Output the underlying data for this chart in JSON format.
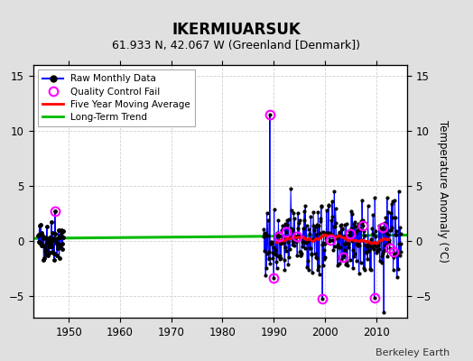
{
  "title": "IKERMIUARSUK",
  "subtitle": "61.933 N, 42.067 W (Greenland [Denmark])",
  "ylabel": "Temperature Anomaly (°C)",
  "credit": "Berkeley Earth",
  "xlim": [
    1943,
    2016
  ],
  "ylim": [
    -7,
    16
  ],
  "yticks": [
    -5,
    0,
    5,
    10,
    15
  ],
  "xticks": [
    1950,
    1960,
    1970,
    1980,
    1990,
    2000,
    2010
  ],
  "bg_color": "#e0e0e0",
  "plot_bg_color": "#ffffff",
  "grid_color": "#cccccc",
  "raw_color": "#0000ff",
  "qc_color": "#ff00ff",
  "moving_avg_color": "#ff0000",
  "trend_color": "#00bb00",
  "spike_year": 1989.25,
  "spike_value": 11.5,
  "early_qc_year": 1947.25,
  "early_qc_value": 3.8,
  "qc_years_main": [
    1989.25,
    1990.0,
    1991.0,
    1992.5,
    1994.5,
    1999.5,
    2001.0,
    2003.5,
    2005.0,
    2007.5,
    2009.7,
    2011.3,
    2012.7,
    2013.5
  ],
  "trend_x": [
    1943,
    2016
  ],
  "trend_y": [
    0.22,
    0.52
  ]
}
